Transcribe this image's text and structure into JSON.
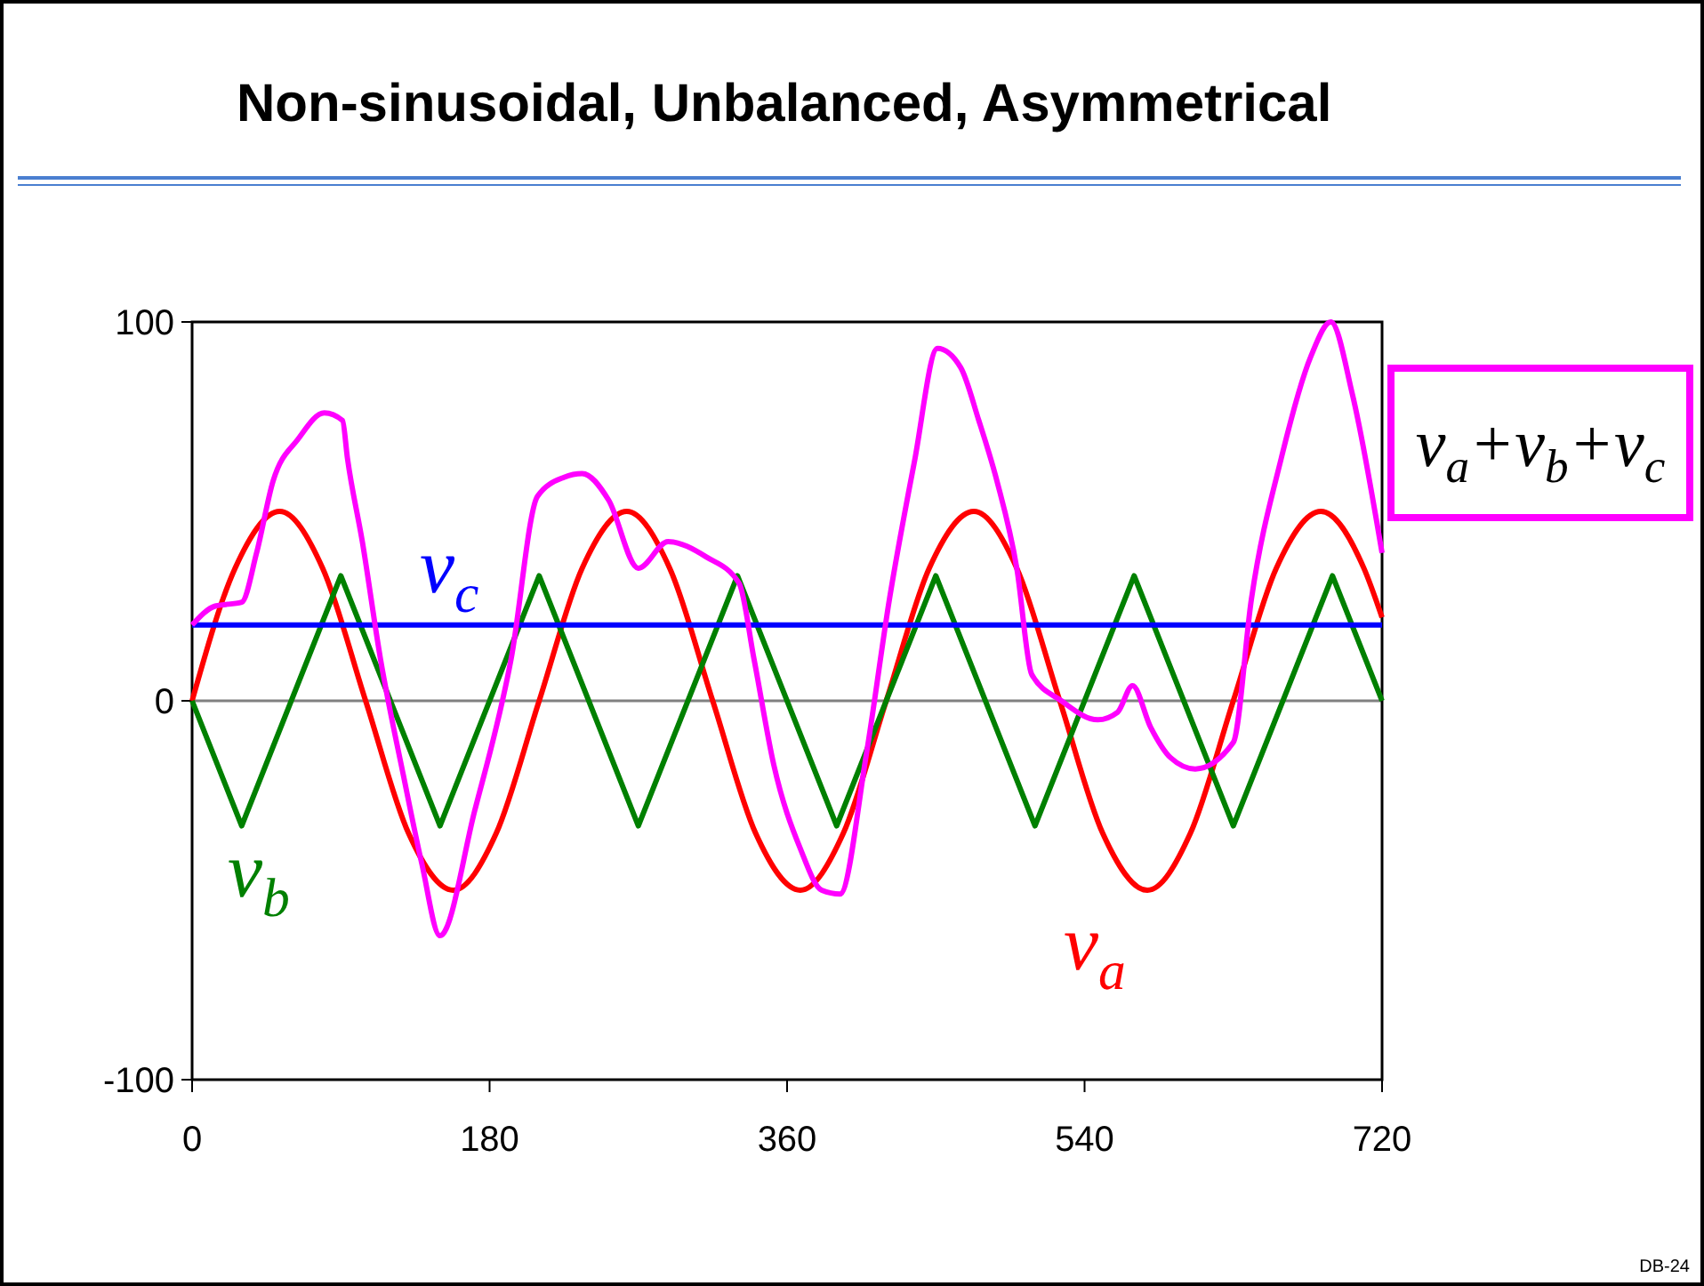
{
  "chart_data": {
    "type": "line",
    "title": "Non-sinusoidal, Unbalanced, Asymmetrical",
    "annotations": [
      "DB-24"
    ],
    "xlim": [
      0,
      720
    ],
    "xticks": [
      0,
      180,
      360,
      540,
      720
    ],
    "ylim": [
      -100,
      100
    ],
    "yticks": [
      -100,
      0,
      100
    ],
    "marker": "none",
    "line_style": "solid",
    "ref_lines": [
      {
        "axis": "y",
        "value": 0,
        "color": "#808080"
      }
    ],
    "series": [
      {
        "name": "v$_{a}$",
        "color": "#ff0000",
        "x": [
          0,
          26,
          53,
          79,
          105,
          131,
          158,
          184,
          210,
          236,
          263,
          289,
          315,
          341,
          368,
          394,
          420,
          446,
          473,
          499,
          525,
          551,
          578,
          604,
          630,
          656,
          683,
          709,
          720
        ],
        "values": [
          0,
          35,
          50,
          35,
          0,
          -35,
          -50,
          -35,
          0,
          35,
          50,
          35,
          0,
          -35,
          -50,
          -35,
          0,
          35,
          50,
          35,
          0,
          -35,
          -50,
          -35,
          0,
          35,
          50,
          35,
          22
        ]
      },
      {
        "name": "v$_{b}$",
        "color": "#008000",
        "x": [
          0,
          30,
          90,
          150,
          210,
          270,
          330,
          390,
          450,
          510,
          570,
          630,
          690,
          720
        ],
        "values": [
          0,
          -33,
          33,
          -33,
          33,
          -33,
          33,
          -33,
          33,
          -33,
          33,
          -33,
          33,
          0
        ]
      },
      {
        "name": "v$_{c}$",
        "color": "#0000ff",
        "x": [
          0,
          720
        ],
        "values": [
          20,
          20
        ]
      },
      {
        "name": "v$_{a}$+v$_{b}$+v$_{c}$",
        "color": "#ff00ff",
        "x": [
          0,
          14,
          30,
          39,
          49,
          64,
          80,
          91,
          94,
          103,
          114,
          128,
          139,
          150,
          171,
          193,
          209,
          225,
          236,
          252,
          270,
          288,
          311,
          331,
          340,
          352,
          368,
          381,
          392,
          408,
          422,
          437,
          451,
          465,
          476,
          487,
          499,
          508,
          526,
          548,
          560,
          569,
          580,
          592,
          607,
          630,
          641,
          659,
          677,
          689,
          702,
          720
        ],
        "values": [
          20,
          25,
          26,
          39,
          58,
          69,
          76,
          74,
          64,
          42,
          11,
          -20,
          -43,
          -62,
          -29,
          11,
          54,
          59,
          60,
          53,
          35,
          42,
          38,
          31,
          11,
          -17,
          -39,
          -50,
          -51,
          -14,
          27,
          63,
          93,
          88,
          74,
          58,
          35,
          7,
          0,
          -5,
          -3,
          4,
          -7,
          -15,
          -18,
          -11,
          27,
          64,
          91,
          100,
          81,
          39
        ]
      }
    ]
  }
}
